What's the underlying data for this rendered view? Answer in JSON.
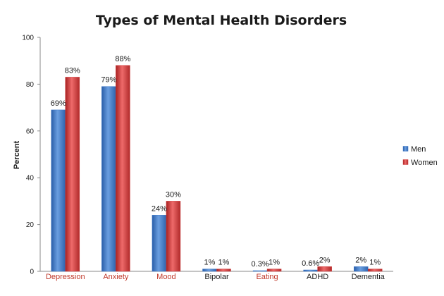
{
  "chart_data": {
    "type": "bar",
    "title": "Types of Mental Health Disorders",
    "xlabel": "",
    "ylabel": "Percent",
    "ylim": [
      0,
      100
    ],
    "yticks": [
      0,
      20,
      40,
      60,
      80,
      100
    ],
    "grid": false,
    "legend_position": "right",
    "categories": [
      "Depression",
      "Anxiety",
      "Mood",
      "Bipolar",
      "Eating",
      "ADHD",
      "Dementia"
    ],
    "category_label_colors": [
      "#c0392b",
      "#c0392b",
      "#c0392b",
      "#1a1a1a",
      "#c0392b",
      "#1a1a1a",
      "#1a1a1a"
    ],
    "series": [
      {
        "name": "Men",
        "color": "#3c78c8",
        "values": [
          69,
          79,
          24,
          1,
          0.3,
          0.6,
          2
        ],
        "labels": [
          "69%",
          "79%",
          "24%",
          "1%",
          "0.3%",
          "0.6%",
          "2%"
        ]
      },
      {
        "name": "Women",
        "color": "#d03a3a",
        "values": [
          83,
          88,
          30,
          1,
          1,
          2,
          1
        ],
        "labels": [
          "83%",
          "88%",
          "30%",
          "1%",
          "1%",
          "2%",
          "1%"
        ]
      }
    ]
  }
}
